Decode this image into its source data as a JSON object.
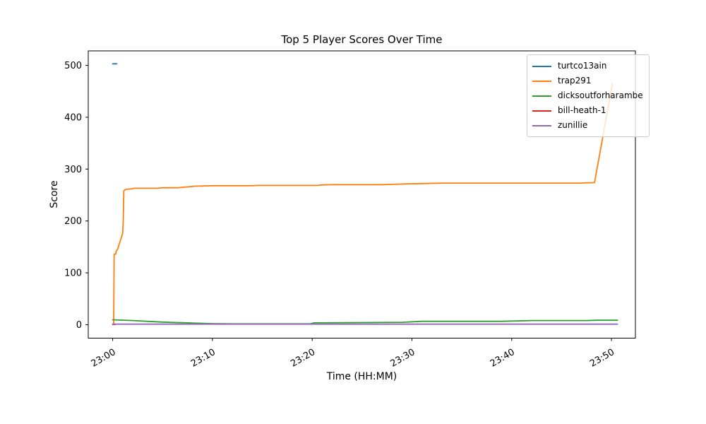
{
  "chart_data": {
    "type": "line",
    "title": "Top 5 Player Scores Over Time",
    "xlabel": "Time (HH:MM)",
    "ylabel": "Score",
    "x_unit": "minutes after 23:00",
    "xlim": [
      -2.45,
      52.4
    ],
    "ylim": [
      -26,
      528
    ],
    "grid": false,
    "legend_position": "upper right",
    "yticks": [
      0,
      100,
      200,
      300,
      400,
      500
    ],
    "xticks": [
      {
        "t": 0,
        "label": "23:00"
      },
      {
        "t": 10,
        "label": "23:10"
      },
      {
        "t": 20,
        "label": "23:20"
      },
      {
        "t": 30,
        "label": "23:30"
      },
      {
        "t": 40,
        "label": "23:40"
      },
      {
        "t": 50,
        "label": "23:50"
      }
    ],
    "series": [
      {
        "name": "turtco13ain",
        "color": "#1f77b4",
        "points": [
          [
            0,
            503
          ],
          [
            0.4,
            503
          ]
        ]
      },
      {
        "name": "trap291",
        "color": "#ff7f0e",
        "points": [
          [
            0.1,
            2
          ],
          [
            0.15,
            136
          ],
          [
            0.3,
            136
          ],
          [
            0.35,
            142
          ],
          [
            0.5,
            146
          ],
          [
            1.0,
            176
          ],
          [
            1.05,
            197
          ],
          [
            1.12,
            258
          ],
          [
            1.3,
            261
          ],
          [
            2.0,
            262
          ],
          [
            2.1,
            263
          ],
          [
            4.5,
            263
          ],
          [
            5.0,
            264
          ],
          [
            6.5,
            264
          ],
          [
            7.0,
            265
          ],
          [
            7.8,
            266
          ],
          [
            8.2,
            267
          ],
          [
            10,
            268
          ],
          [
            14,
            268
          ],
          [
            14.5,
            268.5
          ],
          [
            20.5,
            268.5
          ],
          [
            21,
            269.5
          ],
          [
            22,
            270
          ],
          [
            27,
            270
          ],
          [
            28,
            270.5
          ],
          [
            29.5,
            271.5
          ],
          [
            31,
            272
          ],
          [
            33,
            273
          ],
          [
            40,
            273
          ],
          [
            47,
            273
          ],
          [
            47.5,
            273.5
          ],
          [
            48.3,
            274
          ],
          [
            50.1,
            465
          ]
        ]
      },
      {
        "name": "dicksoutforharambe",
        "color": "#2ca02c",
        "points": [
          [
            0,
            9.5
          ],
          [
            2,
            8
          ],
          [
            5,
            5
          ],
          [
            8,
            3
          ],
          [
            10,
            2
          ],
          [
            12,
            1.5
          ],
          [
            19.8,
            1.5
          ],
          [
            20.2,
            3.5
          ],
          [
            25,
            4
          ],
          [
            29,
            4.5
          ],
          [
            31,
            6.5
          ],
          [
            39,
            6.5
          ],
          [
            42,
            8
          ],
          [
            47.5,
            8
          ],
          [
            48.5,
            8.5
          ],
          [
            50.6,
            8.5
          ]
        ]
      },
      {
        "name": "bill-heath-1",
        "color": "#d62728",
        "points": [
          [
            0,
            0.3
          ],
          [
            0.25,
            0.3
          ]
        ]
      },
      {
        "name": "zunillie",
        "color": "#9467bd",
        "points": [
          [
            0,
            1
          ],
          [
            50.6,
            1
          ]
        ]
      }
    ]
  }
}
